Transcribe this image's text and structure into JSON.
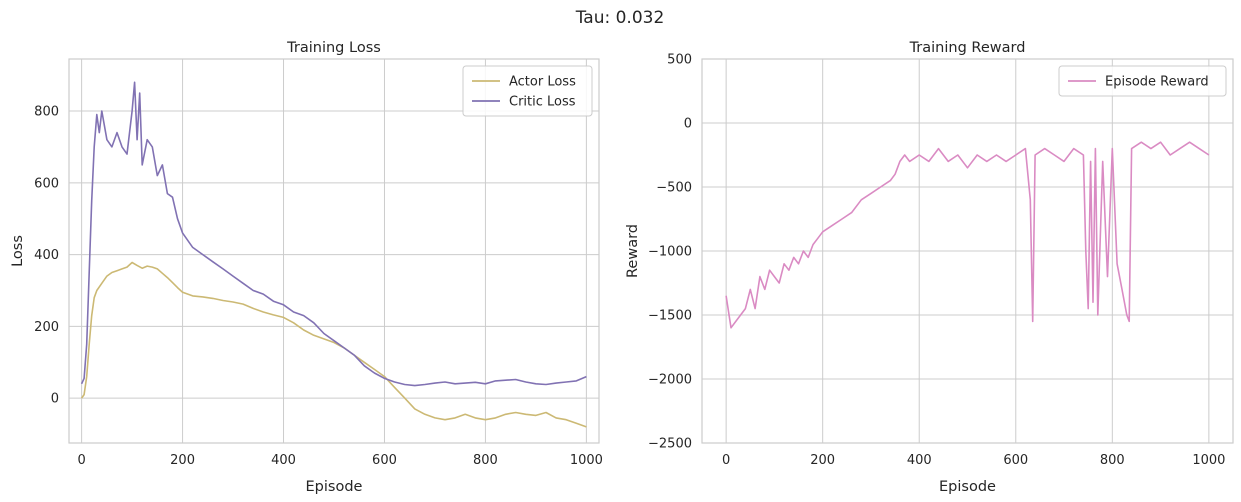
{
  "figure": {
    "suptitle": "Tau: 0.032"
  },
  "chart_data": [
    {
      "type": "line",
      "title": "Training Loss",
      "xlabel": "Episode",
      "ylabel": "Loss",
      "xlim": [
        -25,
        1025
      ],
      "ylim": [
        -125,
        945
      ],
      "xticks": [
        0,
        200,
        400,
        600,
        800,
        1000
      ],
      "yticks": [
        0,
        200,
        400,
        600,
        800
      ],
      "grid": true,
      "legend": "top-right",
      "series": [
        {
          "name": "Actor Loss",
          "color": "#ccb974",
          "x": [
            0,
            5,
            10,
            15,
            20,
            25,
            30,
            40,
            50,
            60,
            70,
            80,
            90,
            100,
            110,
            120,
            130,
            140,
            150,
            160,
            170,
            180,
            190,
            200,
            220,
            240,
            260,
            280,
            300,
            320,
            340,
            360,
            380,
            400,
            420,
            440,
            460,
            480,
            500,
            520,
            540,
            560,
            580,
            600,
            620,
            640,
            660,
            680,
            700,
            720,
            740,
            760,
            780,
            800,
            820,
            840,
            860,
            880,
            900,
            920,
            940,
            960,
            980,
            1000
          ],
          "y": [
            0,
            10,
            60,
            150,
            230,
            280,
            300,
            320,
            340,
            350,
            355,
            360,
            365,
            378,
            370,
            362,
            368,
            365,
            360,
            348,
            336,
            322,
            308,
            295,
            285,
            282,
            278,
            272,
            268,
            262,
            250,
            240,
            232,
            225,
            210,
            190,
            175,
            165,
            155,
            140,
            120,
            100,
            80,
            60,
            30,
            0,
            -30,
            -45,
            -55,
            -60,
            -55,
            -45,
            -55,
            -60,
            -55,
            -45,
            -40,
            -45,
            -48,
            -40,
            -55,
            -60,
            -70,
            -80
          ]
        },
        {
          "name": "Critic Loss",
          "color": "#8172b3",
          "x": [
            0,
            5,
            10,
            15,
            20,
            25,
            30,
            35,
            40,
            50,
            60,
            70,
            80,
            90,
            100,
            105,
            110,
            115,
            120,
            130,
            140,
            150,
            160,
            170,
            180,
            190,
            200,
            220,
            240,
            260,
            280,
            300,
            320,
            340,
            360,
            380,
            400,
            420,
            440,
            460,
            480,
            500,
            520,
            540,
            560,
            580,
            600,
            620,
            640,
            660,
            680,
            700,
            720,
            740,
            760,
            780,
            800,
            820,
            840,
            860,
            880,
            900,
            920,
            940,
            960,
            980,
            1000
          ],
          "y": [
            40,
            55,
            150,
            350,
            550,
            700,
            790,
            740,
            800,
            720,
            700,
            740,
            700,
            680,
            800,
            880,
            720,
            850,
            650,
            720,
            700,
            620,
            650,
            570,
            560,
            500,
            460,
            420,
            400,
            380,
            360,
            340,
            320,
            300,
            290,
            270,
            260,
            240,
            230,
            210,
            180,
            160,
            140,
            120,
            90,
            70,
            55,
            45,
            38,
            35,
            38,
            42,
            45,
            40,
            42,
            44,
            40,
            48,
            50,
            52,
            45,
            40,
            38,
            42,
            45,
            48,
            60
          ]
        }
      ]
    },
    {
      "type": "line",
      "title": "Training Reward",
      "xlabel": "Episode",
      "ylabel": "Reward",
      "xlim": [
        -50,
        1050
      ],
      "ylim": [
        -2500,
        500
      ],
      "xticks": [
        0,
        200,
        400,
        600,
        800,
        1000
      ],
      "yticks": [
        -2500,
        -2000,
        -1500,
        -1000,
        -500,
        0,
        500
      ],
      "grid": true,
      "legend": "top-right",
      "series": [
        {
          "name": "Episode Reward",
          "color": "#da8bc3",
          "x": [
            0,
            10,
            20,
            30,
            40,
            50,
            60,
            70,
            80,
            90,
            100,
            110,
            120,
            130,
            140,
            150,
            160,
            170,
            180,
            190,
            200,
            220,
            240,
            260,
            280,
            300,
            320,
            340,
            350,
            360,
            370,
            380,
            400,
            420,
            440,
            460,
            480,
            500,
            520,
            540,
            560,
            580,
            600,
            620,
            630,
            635,
            640,
            660,
            680,
            700,
            720,
            740,
            745,
            750,
            755,
            760,
            765,
            770,
            780,
            790,
            800,
            810,
            820,
            830,
            835,
            840,
            860,
            880,
            900,
            920,
            940,
            960,
            980,
            1000
          ],
          "y": [
            -1350,
            -1600,
            -1550,
            -1500,
            -1450,
            -1300,
            -1450,
            -1200,
            -1300,
            -1150,
            -1200,
            -1250,
            -1100,
            -1150,
            -1050,
            -1100,
            -1000,
            -1050,
            -950,
            -900,
            -850,
            -800,
            -750,
            -700,
            -600,
            -550,
            -500,
            -450,
            -400,
            -300,
            -250,
            -300,
            -250,
            -300,
            -200,
            -300,
            -250,
            -350,
            -250,
            -300,
            -250,
            -300,
            -250,
            -200,
            -600,
            -1550,
            -250,
            -200,
            -250,
            -300,
            -200,
            -250,
            -1000,
            -1450,
            -300,
            -1400,
            -200,
            -1500,
            -300,
            -1200,
            -200,
            -1100,
            -1300,
            -1500,
            -1550,
            -200,
            -150,
            -200,
            -150,
            -250,
            -200,
            -150,
            -200,
            -250
          ]
        }
      ]
    }
  ]
}
